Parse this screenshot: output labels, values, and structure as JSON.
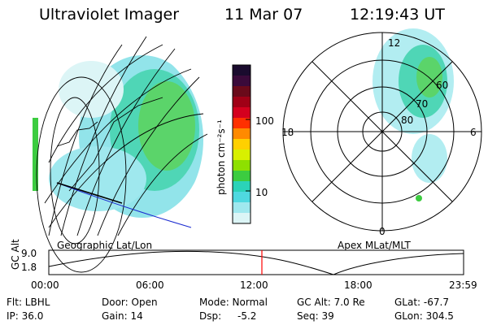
{
  "header": {
    "instrument": "Ultraviolet Imager",
    "date": "11 Mar 07",
    "time": "12:19:43 UT"
  },
  "left_panel": {
    "label": "Geographic Lat/Lon"
  },
  "colorbar": {
    "unit_label": "photon cm⁻²s⁻¹",
    "tick_labels": [
      "100",
      "10"
    ],
    "colors": [
      "#1a0b2e",
      "#3a0a3a",
      "#6a0a1a",
      "#a00016",
      "#d4001e",
      "#ff3000",
      "#ff8a00",
      "#ffd000",
      "#d8f000",
      "#8ee000",
      "#3ccc40",
      "#2bd3b8",
      "#4fd9e0",
      "#9fe8ee",
      "#dcf5f6"
    ]
  },
  "polar_plot": {
    "label": "Apex MLat/MLT",
    "mlt_labels": [
      "12",
      "18",
      "6",
      "0"
    ],
    "lat_labels": [
      "60",
      "70",
      "80"
    ]
  },
  "altitude_plot": {
    "ylabel": "GC Alt",
    "yticks": [
      "9.0",
      "1.8"
    ],
    "xticks": [
      "00:00",
      "06:00",
      "12:00",
      "18:00",
      "23:59"
    ],
    "current_time_fraction": 0.5137,
    "line_color": "#ff0000"
  },
  "footer": {
    "flt": "Flt: LBHL",
    "ip": "IP: 36.0",
    "door": "Door: Open",
    "gain": "Gain: 14",
    "mode": "Mode: Normal",
    "dsp_label": "Dsp:",
    "dsp_value": "-5.2",
    "gc_alt": "GC Alt: 7.0 Re",
    "seq": "Seq: 39",
    "glat": "GLat: -67.7",
    "glon": "GLon: 304.5"
  }
}
